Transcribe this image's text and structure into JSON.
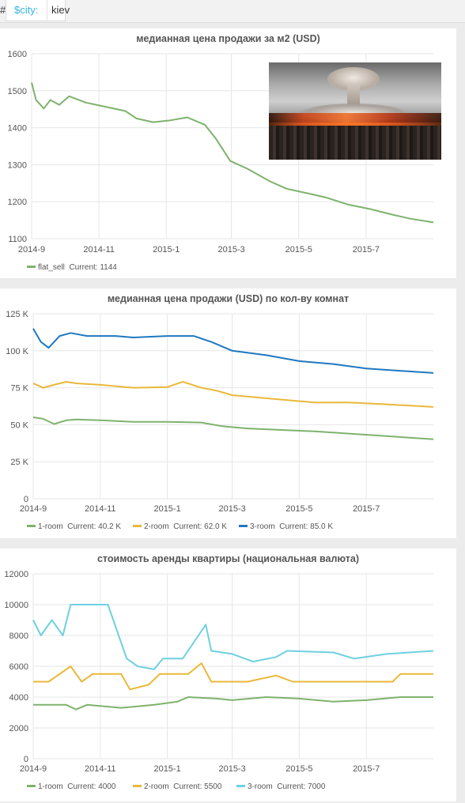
{
  "template_var": {
    "hash": "#",
    "name": "$city:",
    "value": "kiev"
  },
  "photo": {
    "description_icon": "nuclear-explosion-image"
  },
  "colors": {
    "green": "#7eb26d",
    "yellow": "#eab839",
    "blue": "#1f78c1",
    "cyan": "#6ed0e0"
  },
  "panels": [
    {
      "title": "медианная цена продажи за м2 (USD)",
      "legend": [
        {
          "label": "flat_sell",
          "current": "Current: 1144"
        }
      ]
    },
    {
      "title": "медианная цена продажи (USD) по кол-ву комнат",
      "legend": [
        {
          "label": "1-room",
          "current": "Current: 40.2 K"
        },
        {
          "label": "2-room",
          "current": "Current: 62.0 K"
        },
        {
          "label": "3-room",
          "current": "Current: 85.0 K"
        }
      ]
    },
    {
      "title": "стоимость аренды квартиры (национальная валюта)",
      "legend": [
        {
          "label": "1-room",
          "current": "Current: 4000"
        },
        {
          "label": "2-room",
          "current": "Current: 5500"
        },
        {
          "label": "3-room",
          "current": "Current: 7000"
        }
      ]
    }
  ],
  "chart_data": [
    {
      "type": "line",
      "title": "медианная цена продажи за м2 (USD)",
      "x_ticks": [
        "2014-9",
        "2014-11",
        "2015-1",
        "2015-3",
        "2015-5",
        "2015-7"
      ],
      "y_ticks": [
        "1100",
        "1200",
        "1300",
        "1400",
        "1500",
        "1600"
      ],
      "ylim": [
        1100,
        1600
      ],
      "x_range": [
        "2014-09-01",
        "2015-08-31"
      ],
      "series": [
        {
          "name": "flat_sell",
          "color": "#7eb26d",
          "points": [
            [
              "2014-09-01",
              1522
            ],
            [
              "2014-09-05",
              1475
            ],
            [
              "2014-09-12",
              1452
            ],
            [
              "2014-09-18",
              1475
            ],
            [
              "2014-09-26",
              1462
            ],
            [
              "2014-10-05",
              1485
            ],
            [
              "2014-10-20",
              1468
            ],
            [
              "2014-11-05",
              1458
            ],
            [
              "2014-11-25",
              1445
            ],
            [
              "2014-12-05",
              1425
            ],
            [
              "2014-12-20",
              1415
            ],
            [
              "2015-01-05",
              1420
            ],
            [
              "2015-01-20",
              1428
            ],
            [
              "2015-02-05",
              1408
            ],
            [
              "2015-02-15",
              1370
            ],
            [
              "2015-02-28",
              1310
            ],
            [
              "2015-03-15",
              1290
            ],
            [
              "2015-04-05",
              1255
            ],
            [
              "2015-04-20",
              1235
            ],
            [
              "2015-05-10",
              1222
            ],
            [
              "2015-05-25",
              1212
            ],
            [
              "2015-06-15",
              1192
            ],
            [
              "2015-07-05",
              1180
            ],
            [
              "2015-07-25",
              1165
            ],
            [
              "2015-08-10",
              1154
            ],
            [
              "2015-08-31",
              1144
            ]
          ]
        }
      ]
    },
    {
      "type": "line",
      "title": "медианная цена продажи (USD) по кол-ву комнат",
      "x_ticks": [
        "2014-9",
        "2014-11",
        "2015-1",
        "2015-3",
        "2015-5",
        "2015-7"
      ],
      "y_ticks": [
        "0",
        "25 K",
        "50 K",
        "75 K",
        "100 K",
        "125 K"
      ],
      "ylim": [
        0,
        125000
      ],
      "x_range": [
        "2014-09-01",
        "2015-08-31"
      ],
      "series": [
        {
          "name": "1-room",
          "color": "#7eb26d",
          "points": [
            [
              "2014-09-01",
              55000
            ],
            [
              "2014-09-10",
              54000
            ],
            [
              "2014-09-20",
              50500
            ],
            [
              "2014-10-01",
              53000
            ],
            [
              "2014-10-10",
              53500
            ],
            [
              "2014-11-01",
              53000
            ],
            [
              "2014-12-01",
              52000
            ],
            [
              "2015-01-01",
              52000
            ],
            [
              "2015-02-01",
              51500
            ],
            [
              "2015-02-20",
              49000
            ],
            [
              "2015-03-15",
              47500
            ],
            [
              "2015-04-15",
              46500
            ],
            [
              "2015-05-15",
              45500
            ],
            [
              "2015-06-15",
              44000
            ],
            [
              "2015-07-15",
              42500
            ],
            [
              "2015-08-31",
              40200
            ]
          ]
        },
        {
          "name": "2-room",
          "color": "#eab839",
          "points": [
            [
              "2014-09-01",
              78000
            ],
            [
              "2014-09-10",
              75000
            ],
            [
              "2014-09-20",
              77000
            ],
            [
              "2014-10-01",
              79000
            ],
            [
              "2014-10-10",
              78000
            ],
            [
              "2014-11-01",
              77000
            ],
            [
              "2014-12-01",
              75000
            ],
            [
              "2015-01-01",
              75500
            ],
            [
              "2015-01-15",
              79000
            ],
            [
              "2015-02-01",
              75000
            ],
            [
              "2015-02-15",
              73000
            ],
            [
              "2015-03-01",
              70000
            ],
            [
              "2015-04-15",
              67000
            ],
            [
              "2015-05-15",
              65000
            ],
            [
              "2015-06-15",
              65000
            ],
            [
              "2015-07-15",
              64000
            ],
            [
              "2015-08-31",
              62000
            ]
          ]
        },
        {
          "name": "3-room",
          "color": "#1f78c1",
          "points": [
            [
              "2014-09-01",
              115000
            ],
            [
              "2014-09-08",
              106000
            ],
            [
              "2014-09-15",
              102000
            ],
            [
              "2014-09-25",
              110000
            ],
            [
              "2014-10-05",
              112000
            ],
            [
              "2014-10-20",
              110000
            ],
            [
              "2014-11-15",
              110000
            ],
            [
              "2014-12-01",
              109000
            ],
            [
              "2015-01-01",
              110000
            ],
            [
              "2015-01-25",
              110000
            ],
            [
              "2015-02-10",
              106000
            ],
            [
              "2015-03-01",
              100000
            ],
            [
              "2015-04-01",
              97000
            ],
            [
              "2015-05-01",
              93000
            ],
            [
              "2015-06-01",
              91000
            ],
            [
              "2015-07-01",
              88000
            ],
            [
              "2015-08-31",
              85000
            ]
          ]
        }
      ]
    },
    {
      "type": "line",
      "title": "стоимость аренды квартиры (национальная валюта)",
      "x_ticks": [
        "2014-9",
        "2014-11",
        "2015-1",
        "2015-3",
        "2015-5",
        "2015-7"
      ],
      "y_ticks": [
        "0",
        "2000",
        "4000",
        "6000",
        "8000",
        "10000",
        "12000"
      ],
      "ylim": [
        0,
        12000
      ],
      "x_range": [
        "2014-09-01",
        "2015-08-31"
      ],
      "series": [
        {
          "name": "1-room",
          "color": "#7eb26d",
          "points": [
            [
              "2014-09-01",
              3500
            ],
            [
              "2014-10-01",
              3500
            ],
            [
              "2014-10-10",
              3200
            ],
            [
              "2014-10-20",
              3500
            ],
            [
              "2014-11-20",
              3300
            ],
            [
              "2014-12-20",
              3500
            ],
            [
              "2015-01-10",
              3700
            ],
            [
              "2015-01-20",
              4000
            ],
            [
              "2015-02-15",
              3900
            ],
            [
              "2015-03-01",
              3800
            ],
            [
              "2015-04-01",
              4000
            ],
            [
              "2015-05-01",
              3900
            ],
            [
              "2015-06-01",
              3700
            ],
            [
              "2015-07-01",
              3800
            ],
            [
              "2015-08-01",
              4000
            ],
            [
              "2015-08-31",
              4000
            ]
          ]
        },
        {
          "name": "2-room",
          "color": "#eab839",
          "points": [
            [
              "2014-09-01",
              5000
            ],
            [
              "2014-09-15",
              5000
            ],
            [
              "2014-09-25",
              5500
            ],
            [
              "2014-10-05",
              6000
            ],
            [
              "2014-10-15",
              5000
            ],
            [
              "2014-10-25",
              5500
            ],
            [
              "2014-11-20",
              5500
            ],
            [
              "2014-11-28",
              4500
            ],
            [
              "2014-12-15",
              4800
            ],
            [
              "2014-12-25",
              5500
            ],
            [
              "2015-01-20",
              5500
            ],
            [
              "2015-02-01",
              6200
            ],
            [
              "2015-02-10",
              5000
            ],
            [
              "2015-03-15",
              5000
            ],
            [
              "2015-04-10",
              5400
            ],
            [
              "2015-04-25",
              5000
            ],
            [
              "2015-06-15",
              5000
            ],
            [
              "2015-07-25",
              5000
            ],
            [
              "2015-08-01",
              5500
            ],
            [
              "2015-08-31",
              5500
            ]
          ]
        },
        {
          "name": "3-room",
          "color": "#6ed0e0",
          "points": [
            [
              "2014-09-01",
              9000
            ],
            [
              "2014-09-08",
              8000
            ],
            [
              "2014-09-18",
              9000
            ],
            [
              "2014-09-28",
              8000
            ],
            [
              "2014-10-05",
              10000
            ],
            [
              "2014-10-20",
              10000
            ],
            [
              "2014-11-08",
              10000
            ],
            [
              "2014-11-25",
              6500
            ],
            [
              "2014-12-05",
              6000
            ],
            [
              "2014-12-20",
              5800
            ],
            [
              "2014-12-28",
              6500
            ],
            [
              "2015-01-15",
              6500
            ],
            [
              "2015-02-05",
              8700
            ],
            [
              "2015-02-10",
              7000
            ],
            [
              "2015-03-01",
              6800
            ],
            [
              "2015-03-20",
              6300
            ],
            [
              "2015-04-10",
              6600
            ],
            [
              "2015-04-20",
              7000
            ],
            [
              "2015-06-01",
              6900
            ],
            [
              "2015-06-20",
              6500
            ],
            [
              "2015-07-20",
              6800
            ],
            [
              "2015-08-31",
              7000
            ]
          ]
        }
      ]
    }
  ]
}
